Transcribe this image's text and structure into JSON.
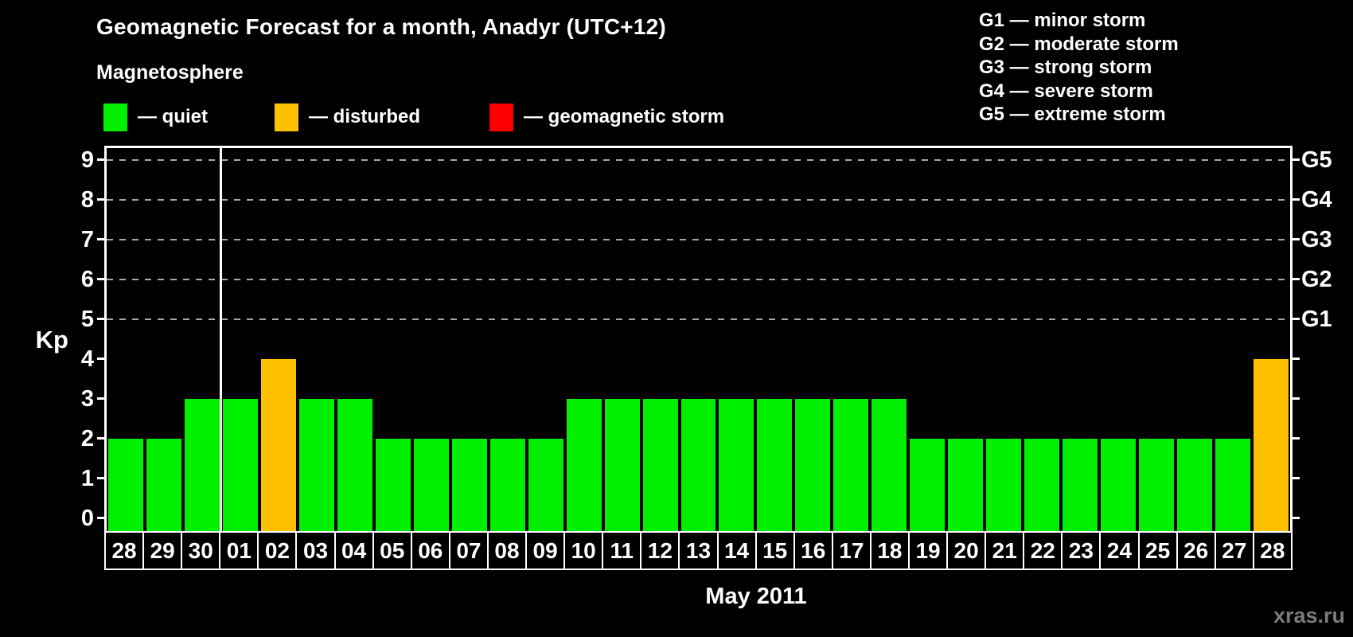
{
  "title": "Geomagnetic Forecast for a month, Anadyr (UTC+12)",
  "subtitle": "Magnetosphere",
  "legend": {
    "items": [
      {
        "name": "quiet",
        "label": "— quiet",
        "color": "#00f000"
      },
      {
        "name": "disturbed",
        "label": "— disturbed",
        "color": "#ffc000"
      },
      {
        "name": "storm",
        "label": "— geomagnetic storm",
        "color": "#ff0000"
      }
    ]
  },
  "storm_scale_legend": [
    "G1 — minor storm",
    "G2 — moderate storm",
    "G3 — strong storm",
    "G4 — severe storm",
    "G5 — extreme storm"
  ],
  "chart_data": {
    "type": "bar",
    "title": "Geomagnetic Forecast for a month, Anadyr (UTC+12)",
    "xlabel": "May 2011",
    "ylabel": "Kp",
    "ylim": [
      0,
      9
    ],
    "y_ticks": [
      0,
      1,
      2,
      3,
      4,
      5,
      6,
      7,
      8,
      9
    ],
    "grid_levels": [
      5,
      6,
      7,
      8,
      9
    ],
    "right_axis_labels": [
      {
        "value": 5,
        "label": "G1"
      },
      {
        "value": 6,
        "label": "G2"
      },
      {
        "value": 7,
        "label": "G3"
      },
      {
        "value": 8,
        "label": "G4"
      },
      {
        "value": 9,
        "label": "G5"
      }
    ],
    "categories": [
      "28",
      "29",
      "30",
      "01",
      "02",
      "03",
      "04",
      "05",
      "06",
      "07",
      "08",
      "09",
      "10",
      "11",
      "12",
      "13",
      "14",
      "15",
      "16",
      "17",
      "18",
      "19",
      "20",
      "21",
      "22",
      "23",
      "24",
      "25",
      "26",
      "27",
      "28"
    ],
    "values": [
      2,
      2,
      3,
      3,
      4,
      3,
      3,
      2,
      2,
      2,
      2,
      2,
      3,
      3,
      3,
      3,
      3,
      3,
      3,
      3,
      3,
      2,
      2,
      2,
      2,
      2,
      2,
      2,
      2,
      2,
      4
    ],
    "states": [
      "quiet",
      "quiet",
      "quiet",
      "quiet",
      "disturbed",
      "quiet",
      "quiet",
      "quiet",
      "quiet",
      "quiet",
      "quiet",
      "quiet",
      "quiet",
      "quiet",
      "quiet",
      "quiet",
      "quiet",
      "quiet",
      "quiet",
      "quiet",
      "quiet",
      "quiet",
      "quiet",
      "quiet",
      "quiet",
      "quiet",
      "quiet",
      "quiet",
      "quiet",
      "quiet",
      "disturbed"
    ],
    "state_colors": {
      "quiet": "#00f000",
      "disturbed": "#ffc000",
      "storm": "#ff0000"
    },
    "month_separator_after_index": 3,
    "grid_color": "#a8a8a8",
    "legend_position": "top"
  },
  "footer": {
    "watermark": "xras.ru"
  }
}
